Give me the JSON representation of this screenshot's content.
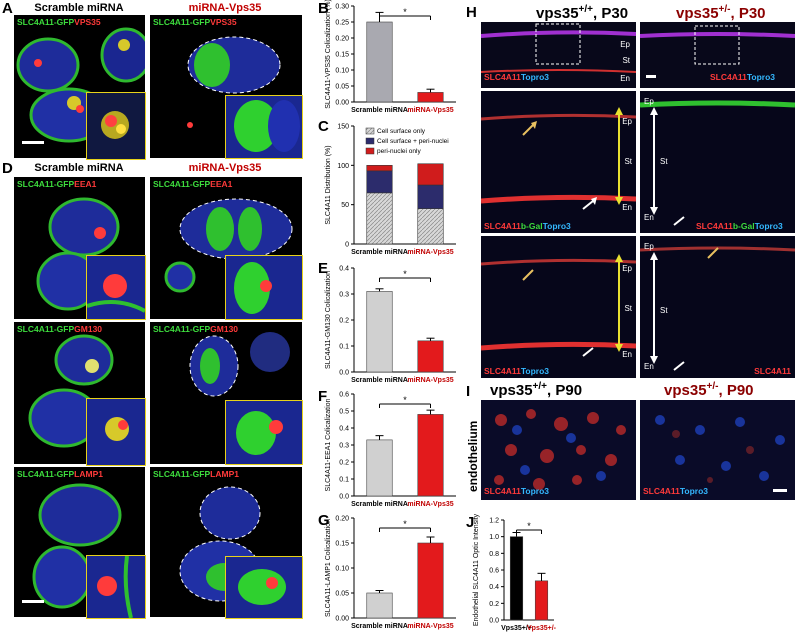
{
  "panel_letters": {
    "A": "A",
    "B": "B",
    "C": "C",
    "D": "D",
    "E": "E",
    "F": "F",
    "G": "G",
    "H": "H",
    "I": "I",
    "J": "J"
  },
  "col_heads": {
    "scramble": "Scramble miRNA",
    "vps35": "miRNA-Vps35"
  },
  "micro_labels": {
    "gfp": "SLC4A11-GFP",
    "vps35": "VPS35",
    "eea1": "EEA1",
    "gm130": "GM130",
    "lamp1": "LAMP1"
  },
  "tissue": {
    "h_left_title_pre": "vps35",
    "h_left_sup": "+/+",
    "h_left_title_post": ", P30",
    "h_right_title_pre": "vps35",
    "h_right_sup": "+/-",
    "h_right_title_post": ", P30",
    "i_left_title_pre": "vps35",
    "i_left_sup": "+/+",
    "i_left_title_post": ", P90",
    "i_right_title_pre": "vps35",
    "i_right_sup": "+/-",
    "i_right_title_post": ", P90",
    "endothelium": "endothelium",
    "slc": "SLC4A11",
    "topro": "Topro3",
    "bgal": "b-Gal",
    "ep": "Ep",
    "st": "St",
    "en": "En"
  },
  "chart_data": [
    {
      "id": "B",
      "type": "bar",
      "categories": [
        "Scramble miRNA",
        "miRNA-Vps35"
      ],
      "values": [
        0.25,
        0.03
      ],
      "errors": [
        0.03,
        0.01
      ],
      "ylabel": "SLC4A11-VPS35 Colicalization (%)",
      "ylim": [
        0,
        0.3
      ],
      "yticks": [
        "0.00",
        "0.05",
        "0.10",
        "0.15",
        "0.20",
        "0.25",
        "0.30"
      ],
      "colors": [
        "#a9a9b0",
        "#e31a1c"
      ],
      "significance": "*"
    },
    {
      "id": "C",
      "type": "bar",
      "categories": [
        "Scramble miRNA",
        "miRNA-Vps35"
      ],
      "ylabel": "SLC4A11 Distribution (%)",
      "ylim": [
        0,
        150
      ],
      "yticks": [
        "0",
        "50",
        "100",
        "150"
      ],
      "series": [
        {
          "name": "Cell surface only",
          "values": [
            65,
            45
          ]
        },
        {
          "name": "Cell surface + peri-nuclei",
          "values": [
            28,
            30
          ]
        },
        {
          "name": "peri-nuclei only",
          "values": [
            7,
            27
          ]
        }
      ]
    },
    {
      "id": "E",
      "type": "bar",
      "categories": [
        "Scramble miRNA",
        "miRNA-Vps35"
      ],
      "values": [
        0.31,
        0.12
      ],
      "errors": [
        0.01,
        0.01
      ],
      "ylabel": "SLC4A11-GM130 Colicalization",
      "ylim": [
        0,
        0.4
      ],
      "yticks": [
        "0.0",
        "0.1",
        "0.2",
        "0.3",
        "0.4"
      ],
      "colors": [
        "#d0d0d0",
        "#e31a1c"
      ],
      "significance": "*"
    },
    {
      "id": "F",
      "type": "bar",
      "categories": [
        "Scramble miRNA",
        "miRNA-Vps35"
      ],
      "values": [
        0.33,
        0.48
      ],
      "errors": [
        0.025,
        0.025
      ],
      "ylabel": "SLC4A11-EEA1 Colicalization",
      "ylim": [
        0,
        0.6
      ],
      "yticks": [
        "0.0",
        "0.1",
        "0.2",
        "0.3",
        "0.4",
        "0.5",
        "0.6"
      ],
      "colors": [
        "#d0d0d0",
        "#e31a1c"
      ],
      "significance": "*"
    },
    {
      "id": "G",
      "type": "bar",
      "categories": [
        "Scramble miRNA",
        "miRNA-Vps35"
      ],
      "values": [
        0.05,
        0.15
      ],
      "errors": [
        0.005,
        0.012
      ],
      "ylabel": "SLC4A11-LAMP1 Colicalization",
      "ylim": [
        0,
        0.2
      ],
      "yticks": [
        "0.00",
        "0.05",
        "0.10",
        "0.15",
        "0.20"
      ],
      "colors": [
        "#d0d0d0",
        "#e31a1c"
      ],
      "significance": "*"
    },
    {
      "id": "J",
      "type": "bar",
      "categories": [
        "Vps35+/+",
        "Vps35+/-"
      ],
      "values": [
        1.0,
        0.47
      ],
      "errors": [
        0.05,
        0.09
      ],
      "ylabel": "Endothelial SLC4A11 Optic Intensity",
      "ylim": [
        0,
        1.2
      ],
      "yticks": [
        "0.0",
        "0.2",
        "0.4",
        "0.6",
        "0.8",
        "1.0",
        "1.2"
      ],
      "colors": [
        "#000000",
        "#e31a1c"
      ],
      "significance": "*"
    }
  ]
}
